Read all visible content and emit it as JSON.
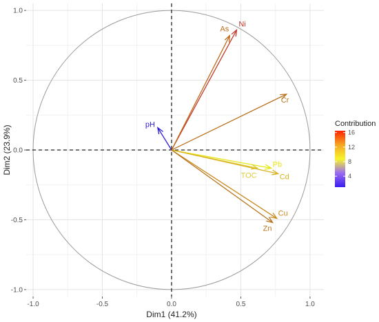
{
  "chart_data": {
    "type": "scatter",
    "subtype": "pca-variable-correlation-circle",
    "title": "",
    "xlabel": "Dim1 (41.2%)",
    "ylabel": "Dim2 (23.9%)",
    "xlim": [
      -1.05,
      1.1
    ],
    "ylim": [
      -1.05,
      1.05
    ],
    "x_ticks": [
      -1.0,
      -0.5,
      0.0,
      0.5,
      1.0
    ],
    "x_tick_labels": [
      "-1.0",
      "-0.5",
      "0.0",
      "0.5",
      "1.0"
    ],
    "y_ticks": [
      -1.0,
      -0.5,
      0.0,
      0.5,
      1.0
    ],
    "y_tick_labels": [
      "-1.0",
      "-0.5",
      "0.0",
      "0.5",
      "1.0"
    ],
    "grid": true,
    "unit_circle": true,
    "variables": [
      {
        "name": "Ni",
        "x": 0.47,
        "y": 0.86,
        "contribution": 15.5,
        "color": "#c0392b"
      },
      {
        "name": "As",
        "x": 0.42,
        "y": 0.82,
        "contribution": 13.0,
        "color": "#c06a1b"
      },
      {
        "name": "Cr",
        "x": 0.83,
        "y": 0.4,
        "contribution": 12.5,
        "color": "#b8731e"
      },
      {
        "name": "pH",
        "x": -0.1,
        "y": 0.16,
        "contribution": 1.0,
        "color": "#2d1bd6"
      },
      {
        "name": "Pb",
        "x": 0.72,
        "y": -0.13,
        "contribution": 7.5,
        "color": "#e6e614"
      },
      {
        "name": "TOC",
        "x": 0.62,
        "y": -0.13,
        "contribution": 8.0,
        "color": "#e0cc3a"
      },
      {
        "name": "Cd",
        "x": 0.77,
        "y": -0.17,
        "contribution": 9.5,
        "color": "#d8b21e"
      },
      {
        "name": "Cu",
        "x": 0.76,
        "y": -0.49,
        "contribution": 11.0,
        "color": "#c88a1e"
      },
      {
        "name": "Zn",
        "x": 0.73,
        "y": -0.52,
        "contribution": 12.0,
        "color": "#b8761e"
      }
    ],
    "legend": {
      "title": "Contribution",
      "position": "right",
      "ticks": [
        "4",
        "8",
        "12",
        "16"
      ],
      "tick_values": [
        4,
        8,
        12,
        16
      ],
      "range": [
        1,
        16.5
      ],
      "colors": [
        "#3a1cf0",
        "#9a6cf0",
        "#f7f52a",
        "#f5a623",
        "#ff2200"
      ]
    }
  }
}
